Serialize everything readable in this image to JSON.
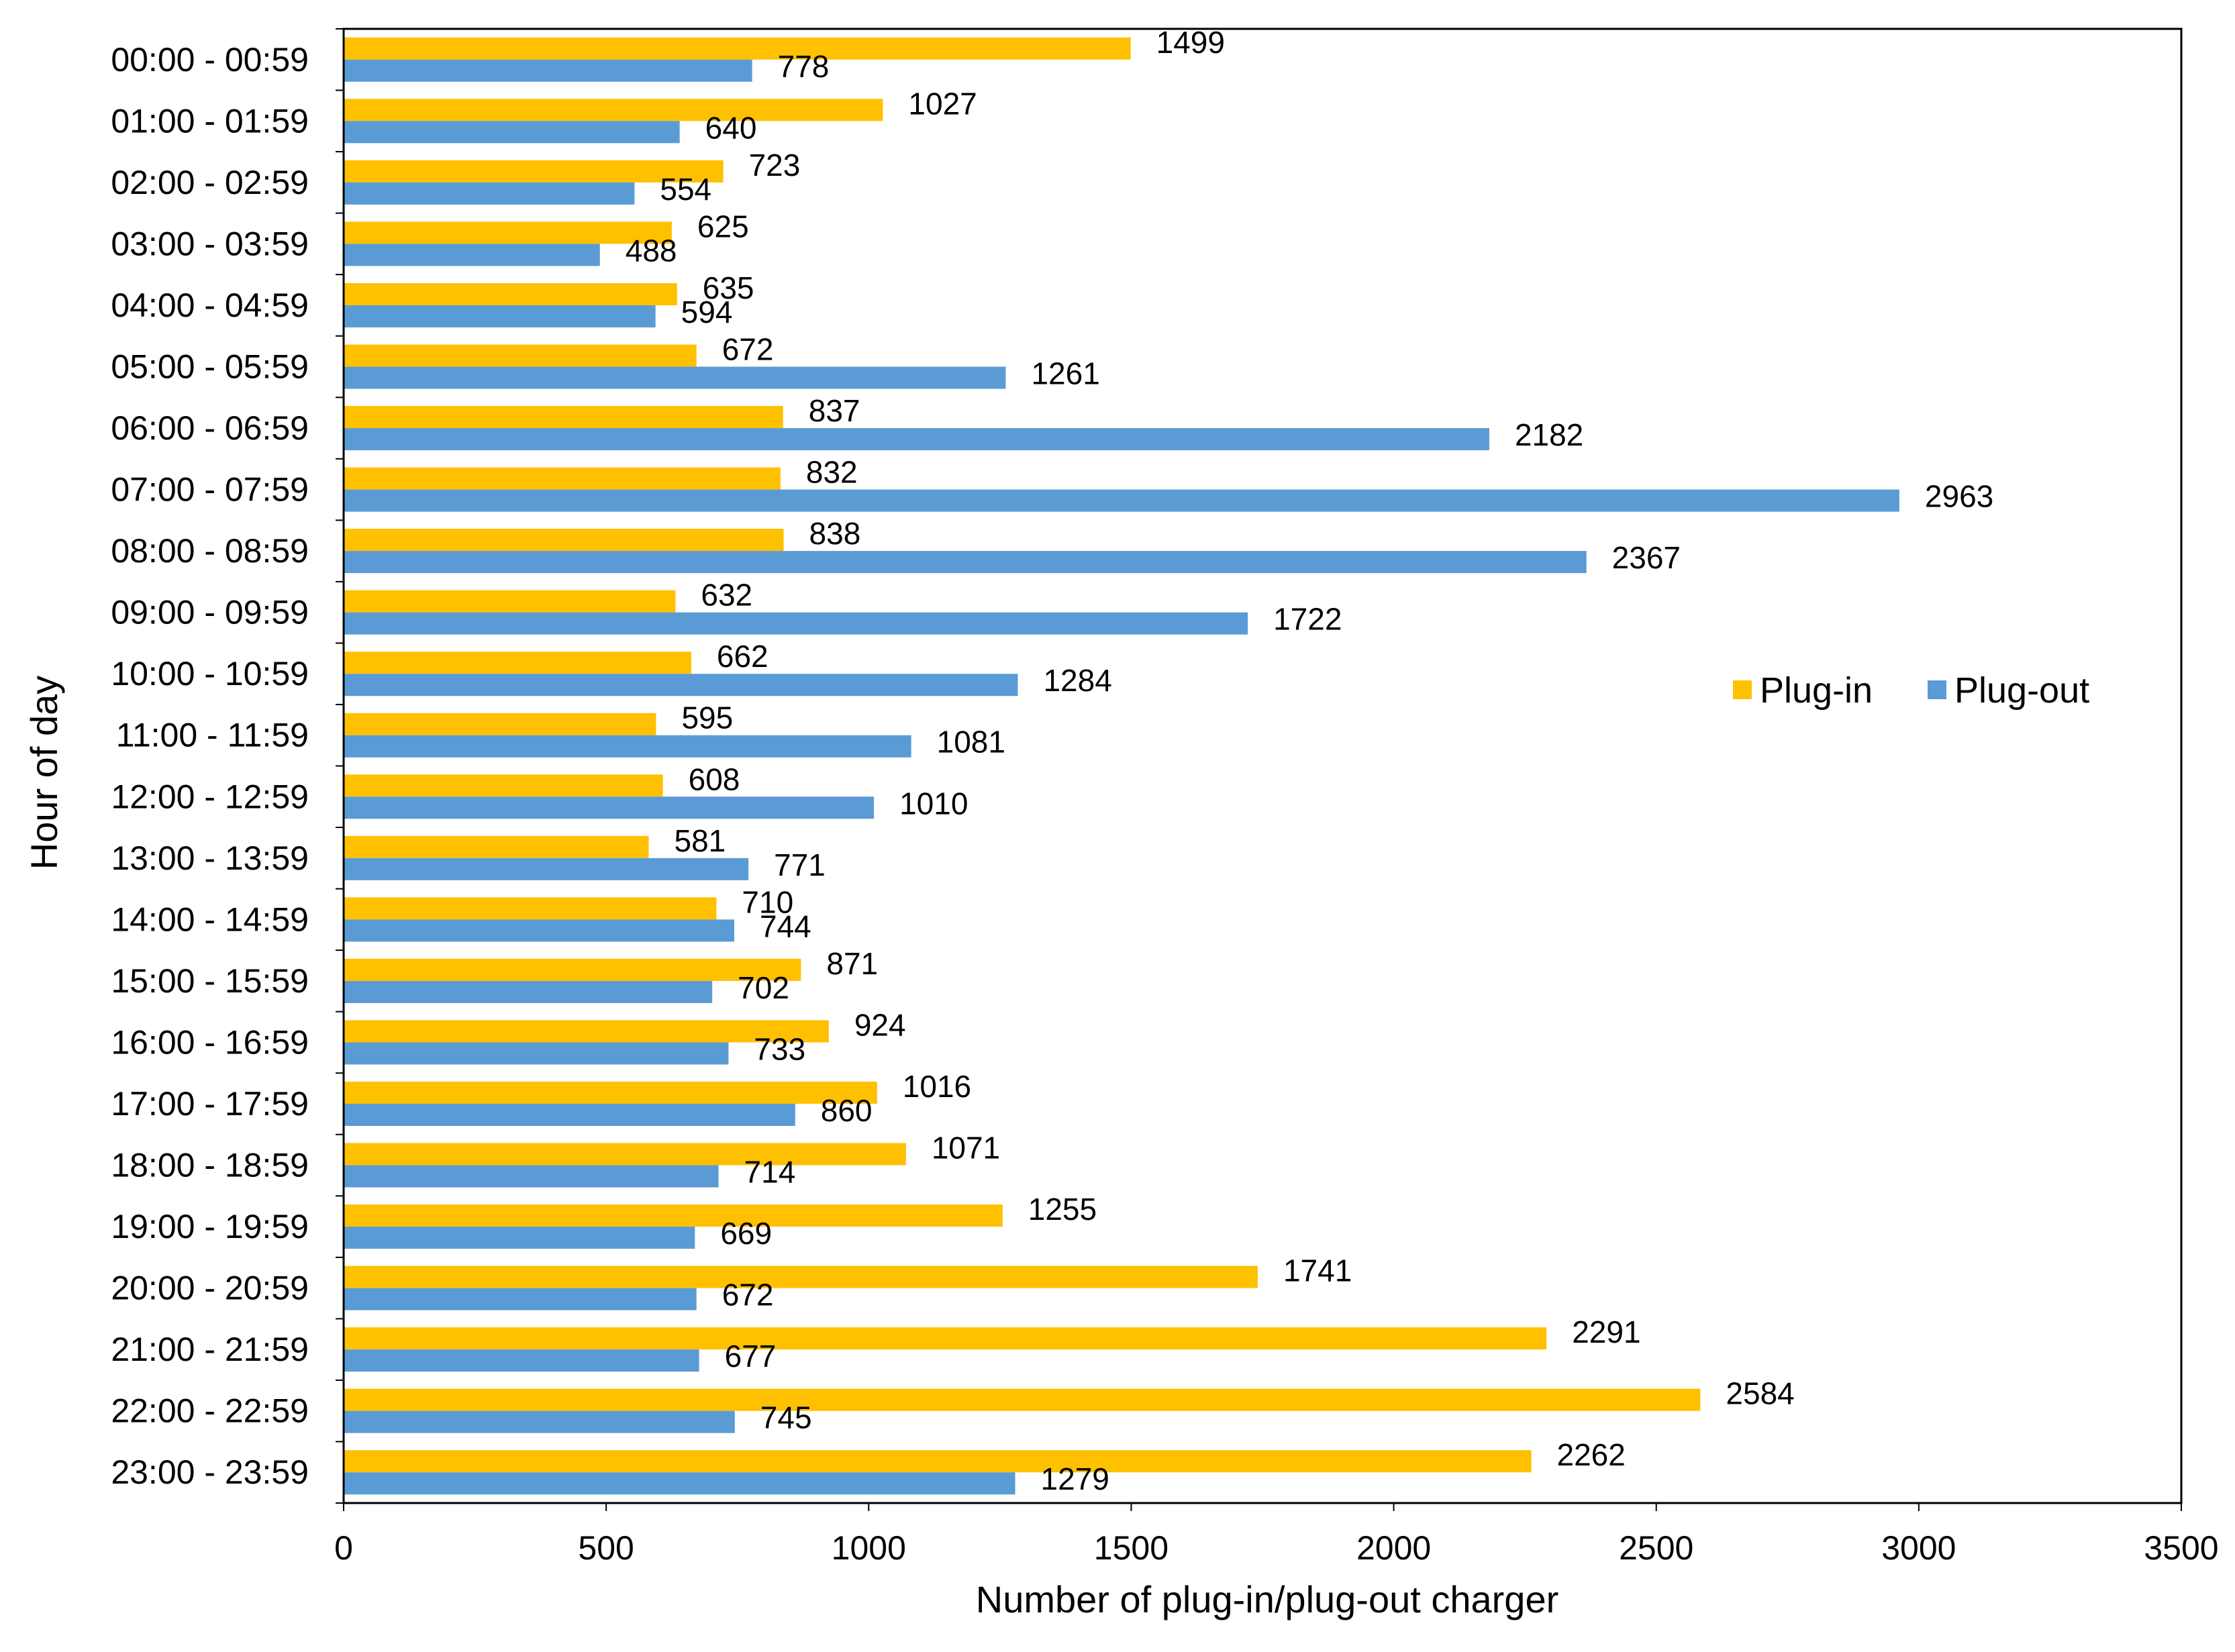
{
  "chart_data": {
    "type": "bar",
    "orientation": "horizontal",
    "xlabel": "Number of plug-in/plug-out charger",
    "ylabel": "Hour of day",
    "xlim": [
      0,
      3500
    ],
    "x_ticks": [
      "0",
      "500",
      "1000",
      "1500",
      "2000",
      "2500",
      "3000",
      "3500"
    ],
    "grid": false,
    "legend_position": "right",
    "categories": [
      "00:00 - 00:59",
      "01:00 - 01:59",
      "02:00 - 02:59",
      "03:00 - 03:59",
      "04:00 - 04:59",
      "05:00 - 05:59",
      "06:00 - 06:59",
      "07:00 - 07:59",
      "08:00 - 08:59",
      "09:00 - 09:59",
      "10:00 - 10:59",
      "11:00 - 11:59",
      "12:00 - 12:59",
      "13:00 - 13:59",
      "14:00 - 14:59",
      "15:00 - 15:59",
      "16:00 - 16:59",
      "17:00 - 17:59",
      "18:00 - 18:59",
      "19:00 - 19:59",
      "20:00 - 20:59",
      "21:00 - 21:59",
      "22:00 - 22:59",
      "23:00 - 23:59"
    ],
    "series": [
      {
        "name": "Plug-in",
        "color": "#FFC000",
        "values": [
          1499,
          1027,
          723,
          625,
          635,
          672,
          837,
          832,
          838,
          632,
          662,
          595,
          608,
          581,
          710,
          871,
          924,
          1016,
          1071,
          1255,
          1741,
          2291,
          2584,
          2262
        ]
      },
      {
        "name": "Plug-out",
        "color": "#5B9BD5",
        "values": [
          778,
          640,
          554,
          488,
          594,
          1261,
          2182,
          2963,
          2367,
          1722,
          1284,
          1081,
          1010,
          771,
          744,
          702,
          733,
          860,
          714,
          669,
          672,
          677,
          745,
          1279
        ]
      }
    ]
  }
}
